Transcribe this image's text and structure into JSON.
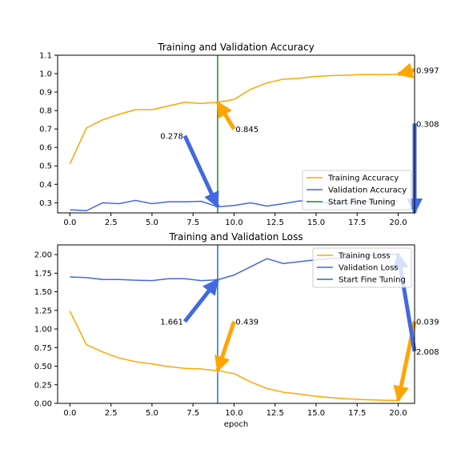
{
  "chart_data": [
    {
      "type": "line",
      "title": "Training and Validation Accuracy",
      "xlabel": "",
      "ylabel": "",
      "xlim": [
        -0.75,
        21
      ],
      "ylim": [
        0.245,
        1.1
      ],
      "xticks": [
        0.0,
        2.5,
        5.0,
        7.5,
        10.0,
        12.5,
        15.0,
        17.5,
        20.0
      ],
      "xtick_labels": [
        "0.0",
        "2.5",
        "5.0",
        "7.5",
        "10.0",
        "12.5",
        "15.0",
        "17.5",
        "20.0"
      ],
      "yticks": [
        0.3,
        0.4,
        0.5,
        0.6,
        0.7,
        0.8,
        0.9,
        1.0,
        1.1
      ],
      "ytick_labels": [
        "0.3",
        "0.4",
        "0.5",
        "0.6",
        "0.7",
        "0.8",
        "0.9",
        "1.0",
        "1.1"
      ],
      "x": [
        0,
        1,
        2,
        3,
        4,
        5,
        6,
        7,
        8,
        9,
        10,
        11,
        12,
        13,
        14,
        15,
        16,
        17,
        18,
        19,
        20
      ],
      "series": [
        {
          "name": "Training Accuracy",
          "color": "#FFA500",
          "values": [
            0.51,
            0.705,
            0.75,
            0.78,
            0.805,
            0.805,
            0.825,
            0.845,
            0.838,
            0.845,
            0.86,
            0.915,
            0.95,
            0.97,
            0.975,
            0.985,
            0.99,
            0.992,
            0.996,
            0.995,
            0.997
          ]
        },
        {
          "name": "Validation Accuracy",
          "color": "#4169E1",
          "values": [
            0.262,
            0.257,
            0.3,
            0.295,
            0.313,
            0.295,
            0.305,
            0.305,
            0.308,
            0.278,
            0.285,
            0.3,
            0.282,
            0.295,
            0.31,
            0.305,
            0.3,
            0.3,
            0.305,
            0.308,
            0.308
          ]
        }
      ],
      "vline": {
        "name": "Start Fine Tuning",
        "x": 9,
        "color": "#228B22"
      },
      "legend": {
        "placement": "lower-right",
        "entries": [
          "Training Accuracy",
          "Validation Accuracy",
          "Start Fine Tuning"
        ]
      },
      "annotations": [
        {
          "text": "0.278",
          "xy": [
            9,
            0.278
          ],
          "xytext": [
            7.0,
            0.663
          ],
          "color": "#4169E1",
          "text_anchor": "end"
        },
        {
          "text": "0.845",
          "xy": [
            9,
            0.845
          ],
          "xytext": [
            10.0,
            0.7
          ],
          "color": "#FFA500",
          "text_anchor": "start"
        },
        {
          "text": "0.997",
          "xy": [
            20,
            0.997
          ],
          "xytext": [
            21,
            1.02
          ],
          "color": "#FFA500",
          "text_anchor": "start"
        },
        {
          "text": "0.308",
          "xy": [
            21,
            0.245
          ],
          "xytext": [
            21,
            0.73
          ],
          "color": "#4169E1",
          "text_anchor": "start"
        }
      ]
    },
    {
      "type": "line",
      "title": "Training and Validation Loss",
      "xlabel": "epoch",
      "ylabel": "",
      "xlim": [
        -0.75,
        21
      ],
      "ylim": [
        0.0,
        2.13
      ],
      "xticks": [
        0.0,
        2.5,
        5.0,
        7.5,
        10.0,
        12.5,
        15.0,
        17.5,
        20.0
      ],
      "xtick_labels": [
        "0.0",
        "2.5",
        "5.0",
        "7.5",
        "10.0",
        "12.5",
        "15.0",
        "17.5",
        "20.0"
      ],
      "yticks": [
        0.0,
        0.25,
        0.5,
        0.75,
        1.0,
        1.25,
        1.5,
        1.75,
        2.0
      ],
      "ytick_labels": [
        "0.00",
        "0.25",
        "0.50",
        "0.75",
        "1.00",
        "1.25",
        "1.50",
        "1.75",
        "2.00"
      ],
      "x": [
        0,
        1,
        2,
        3,
        4,
        5,
        6,
        7,
        8,
        9,
        10,
        11,
        12,
        13,
        14,
        15,
        16,
        17,
        18,
        19,
        20
      ],
      "series": [
        {
          "name": "Training Loss",
          "color": "#FFA500",
          "values": [
            1.24,
            0.79,
            0.69,
            0.61,
            0.56,
            0.53,
            0.495,
            0.47,
            0.462,
            0.439,
            0.4,
            0.29,
            0.2,
            0.15,
            0.125,
            0.095,
            0.075,
            0.06,
            0.05,
            0.043,
            0.039
          ]
        },
        {
          "name": "Validation Loss",
          "color": "#4169E1",
          "values": [
            1.7,
            1.69,
            1.665,
            1.665,
            1.655,
            1.65,
            1.675,
            1.675,
            1.65,
            1.661,
            1.725,
            1.835,
            1.945,
            1.88,
            1.905,
            1.93,
            1.95,
            1.96,
            1.98,
            2.0,
            2.008
          ]
        }
      ],
      "vline": {
        "name": "Start Fine Tuning",
        "x": 9,
        "color": "#1F77B4"
      },
      "legend": {
        "placement": "upper-right",
        "entries": [
          "Training Loss",
          "Validation Loss",
          "Start Fine Tuning"
        ]
      },
      "annotations": [
        {
          "text": "1.661",
          "xy": [
            9,
            1.661
          ],
          "xytext": [
            7.0,
            1.1
          ],
          "color": "#4169E1",
          "text_anchor": "end"
        },
        {
          "text": "0.439",
          "xy": [
            9,
            0.439
          ],
          "xytext": [
            10.0,
            1.1
          ],
          "color": "#FFA500",
          "text_anchor": "start"
        },
        {
          "text": "0.039",
          "xy": [
            20,
            0.039
          ],
          "xytext": [
            21,
            1.1
          ],
          "color": "#FFA500",
          "text_anchor": "start"
        },
        {
          "text": "2.008",
          "xy": [
            20,
            2.008
          ],
          "xytext": [
            21,
            0.7
          ],
          "color": "#4169E1",
          "text_anchor": "start"
        }
      ]
    }
  ]
}
